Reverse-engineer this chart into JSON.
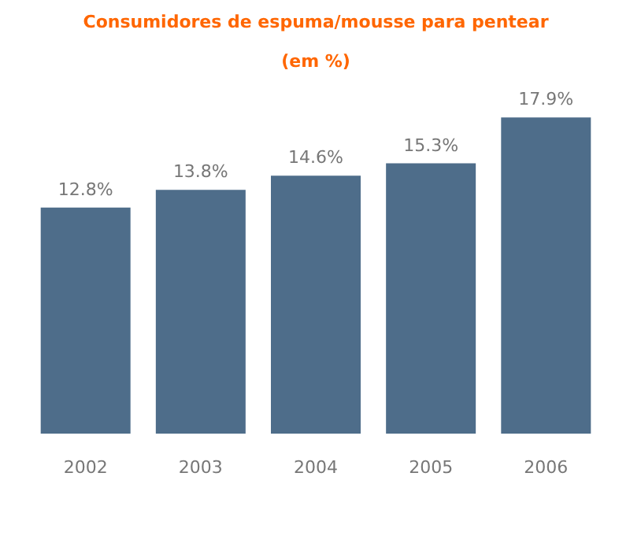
{
  "chart_data": {
    "type": "bar",
    "title": "Consumidores de espuma/mousse para pentear",
    "subtitle": "(em %)",
    "categories": [
      "2002",
      "2003",
      "2004",
      "2005",
      "2006"
    ],
    "values": [
      12.8,
      13.8,
      14.6,
      15.3,
      17.9
    ],
    "color": "#4e6d8a",
    "value_labels": [
      "12.8%",
      "13.8%",
      "14.6%",
      "15.3%",
      "17.9%"
    ],
    "tick_labels": "x",
    "grid": false
  }
}
